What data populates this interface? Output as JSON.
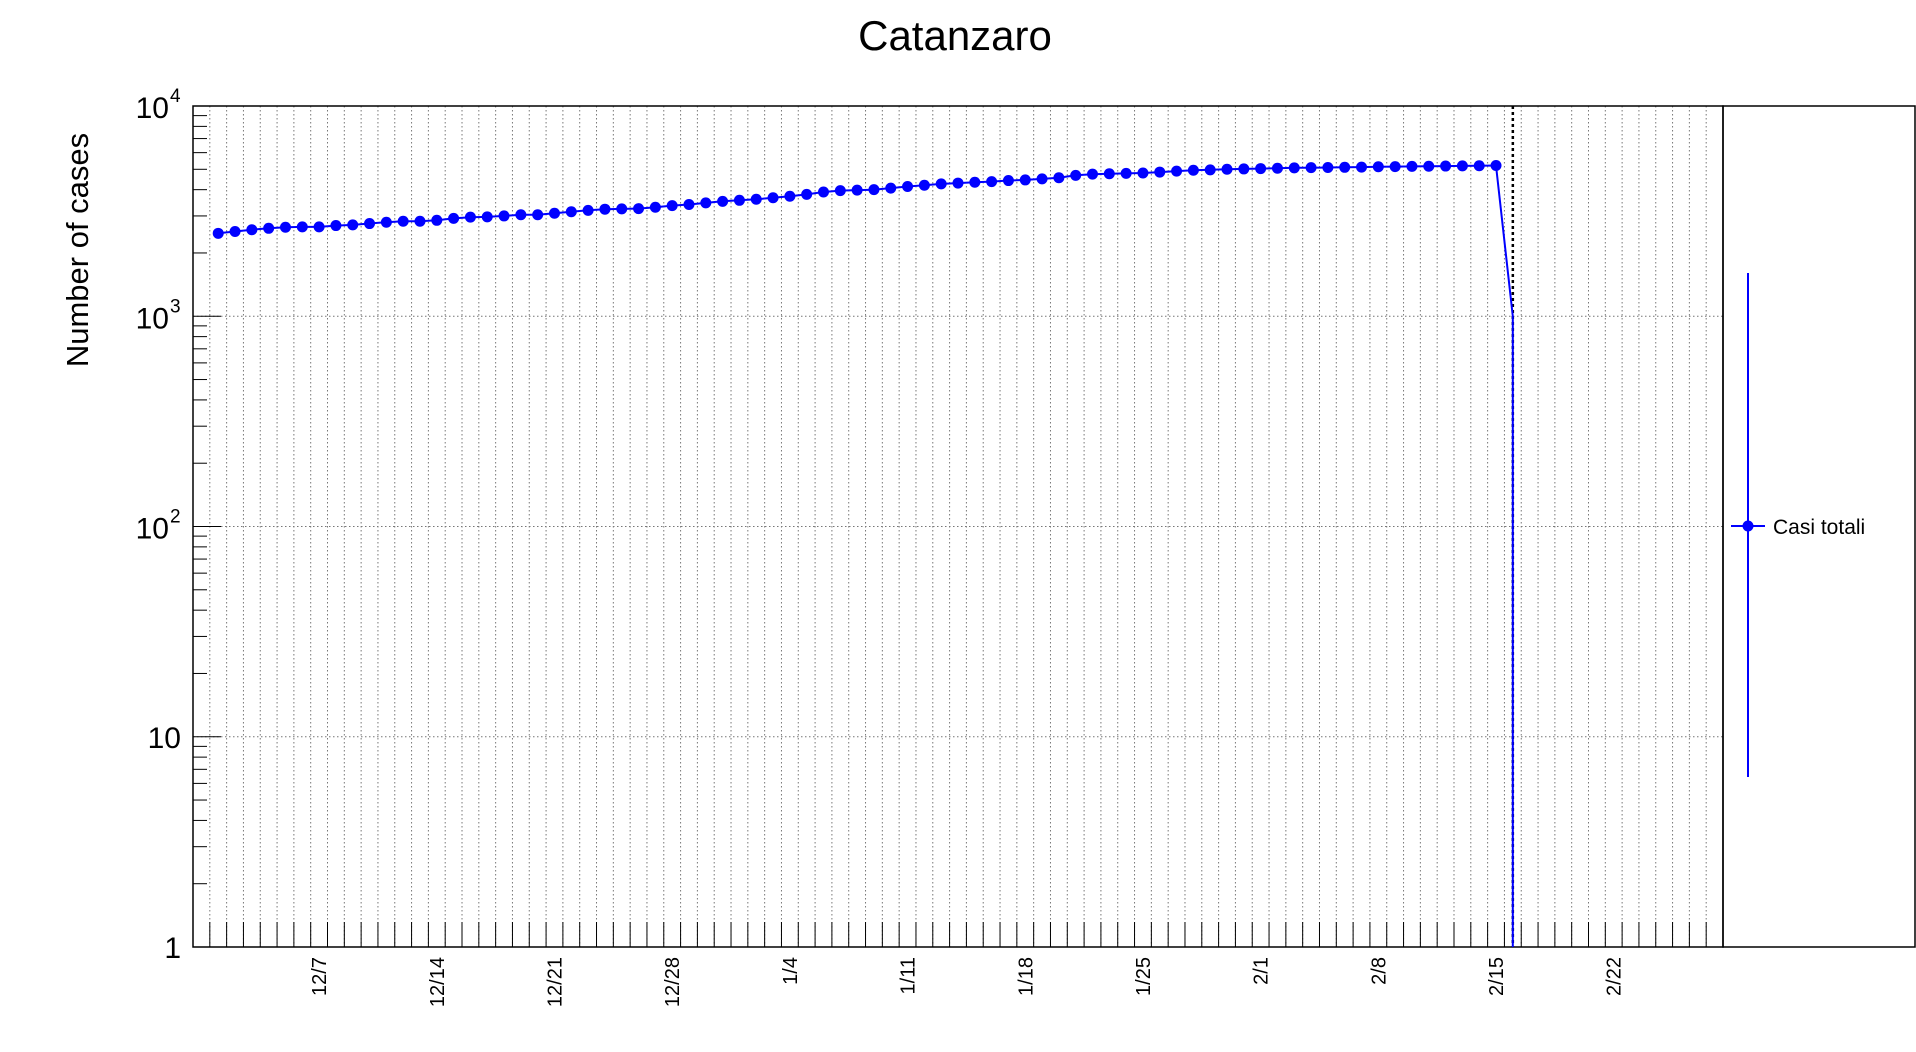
{
  "chart_data": {
    "type": "line",
    "title": "Catanzaro",
    "xlabel": "",
    "ylabel": "Number of cases",
    "y_scale": "log",
    "ylim": [
      1,
      10000
    ],
    "y_ticks": [
      {
        "value": 1,
        "base": "1",
        "exp": ""
      },
      {
        "value": 10,
        "base": "10",
        "exp": ""
      },
      {
        "value": 100,
        "base": "10",
        "exp": "2"
      },
      {
        "value": 1000,
        "base": "10",
        "exp": "3"
      },
      {
        "value": 10000,
        "base": "10",
        "exp": "4"
      }
    ],
    "x_range": [
      "2020-11-30",
      "2021-03-01"
    ],
    "x_tick_labels": [
      {
        "date": "2020-12-07",
        "label": "12/7"
      },
      {
        "date": "2020-12-14",
        "label": "12/14"
      },
      {
        "date": "2020-12-21",
        "label": "12/21"
      },
      {
        "date": "2020-12-28",
        "label": "12/28"
      },
      {
        "date": "2021-01-04",
        "label": "1/4"
      },
      {
        "date": "2021-01-11",
        "label": "1/11"
      },
      {
        "date": "2021-01-18",
        "label": "1/18"
      },
      {
        "date": "2021-01-25",
        "label": "1/25"
      },
      {
        "date": "2021-02-01",
        "label": "2/1"
      },
      {
        "date": "2021-02-08",
        "label": "2/8"
      },
      {
        "date": "2021-02-15",
        "label": "2/15"
      },
      {
        "date": "2021-02-22",
        "label": "2/22"
      }
    ],
    "grid": true,
    "marker_line": "2021-02-16",
    "legend_position": "right",
    "series": [
      {
        "name": "Casi totali",
        "color": "#0000ff",
        "x": [
          "2020-12-01",
          "2020-12-02",
          "2020-12-03",
          "2020-12-04",
          "2020-12-05",
          "2020-12-06",
          "2020-12-07",
          "2020-12-08",
          "2020-12-09",
          "2020-12-10",
          "2020-12-11",
          "2020-12-12",
          "2020-12-13",
          "2020-12-14",
          "2020-12-15",
          "2020-12-16",
          "2020-12-17",
          "2020-12-18",
          "2020-12-19",
          "2020-12-20",
          "2020-12-21",
          "2020-12-22",
          "2020-12-23",
          "2020-12-24",
          "2020-12-25",
          "2020-12-26",
          "2020-12-27",
          "2020-12-28",
          "2020-12-29",
          "2020-12-30",
          "2020-12-31",
          "2021-01-01",
          "2021-01-02",
          "2021-01-03",
          "2021-01-04",
          "2021-01-05",
          "2021-01-06",
          "2021-01-07",
          "2021-01-08",
          "2021-01-09",
          "2021-01-10",
          "2021-01-11",
          "2021-01-12",
          "2021-01-13",
          "2021-01-14",
          "2021-01-15",
          "2021-01-16",
          "2021-01-17",
          "2021-01-18",
          "2021-01-19",
          "2021-01-20",
          "2021-01-21",
          "2021-01-22",
          "2021-01-23",
          "2021-01-24",
          "2021-01-25",
          "2021-01-26",
          "2021-01-27",
          "2021-01-28",
          "2021-01-29",
          "2021-01-30",
          "2021-01-31",
          "2021-02-01",
          "2021-02-02",
          "2021-02-03",
          "2021-02-04",
          "2021-02-05",
          "2021-02-06",
          "2021-02-07",
          "2021-02-08",
          "2021-02-09",
          "2021-02-10",
          "2021-02-11",
          "2021-02-12",
          "2021-02-13",
          "2021-02-14",
          "2021-02-15"
        ],
        "values": [
          2480,
          2530,
          2580,
          2620,
          2650,
          2660,
          2660,
          2700,
          2720,
          2760,
          2800,
          2830,
          2830,
          2860,
          2920,
          2960,
          2970,
          3000,
          3040,
          3040,
          3090,
          3140,
          3190,
          3230,
          3240,
          3250,
          3300,
          3360,
          3400,
          3460,
          3520,
          3560,
          3600,
          3660,
          3720,
          3800,
          3900,
          3960,
          3980,
          4000,
          4070,
          4140,
          4200,
          4260,
          4300,
          4340,
          4370,
          4420,
          4450,
          4500,
          4560,
          4680,
          4740,
          4760,
          4780,
          4800,
          4850,
          4900,
          4950,
          4970,
          5000,
          5020,
          5040,
          5060,
          5080,
          5090,
          5100,
          5110,
          5120,
          5140,
          5150,
          5160,
          5170,
          5180,
          5190,
          5200,
          5210
        ],
        "drop_x": [
          "2021-02-15",
          "2021-02-16",
          "2021-02-16"
        ],
        "drop_values": [
          5210,
          1000,
          1
        ]
      }
    ]
  }
}
